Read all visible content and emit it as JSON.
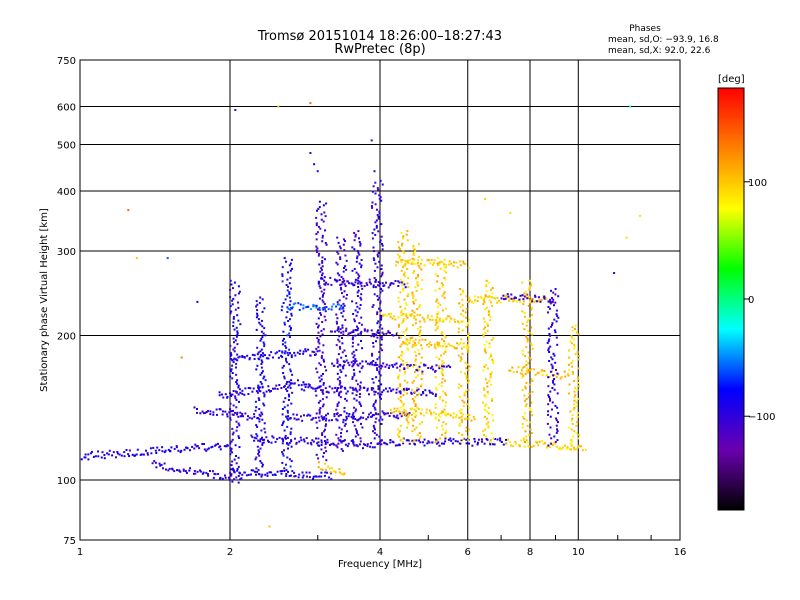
{
  "chart_data": {
    "type": "scatter",
    "title": "Tromsø 20151014 18:26:00–18:27:43",
    "subtitle": "RwPretec (8p)",
    "xlabel": "Frequency [MHz]",
    "ylabel": "Stationary phase Virtual Height [km]",
    "xscale": "log",
    "yscale": "log",
    "xlim": [
      1,
      16
    ],
    "ylim": [
      75,
      750
    ],
    "xticks": [
      1,
      2,
      4,
      6,
      8,
      10,
      16
    ],
    "yticks": [
      75,
      100,
      200,
      300,
      400,
      500,
      600,
      750
    ],
    "grid": true,
    "annotation": {
      "title": "Phases",
      "line_o": "mean, sd,O: −93.9, 16.8",
      "line_x": "mean, sd,X:  92.0, 22.6"
    },
    "colorbar": {
      "label": "[deg]",
      "range": [
        -180,
        180
      ],
      "ticks": [
        100,
        0,
        -100
      ],
      "tick_labels": [
        "100",
        "0",
        "−100"
      ],
      "colormap": [
        "#000000",
        "#6a00b0",
        "#0000ff",
        "#00ffff",
        "#00ff00",
        "#ffff00",
        "#ff8000",
        "#ff0000"
      ]
    },
    "traces": [
      {
        "f_start": 1.0,
        "f_end": 2.0,
        "h_start": 112,
        "h_end": 118,
        "phase": -95
      },
      {
        "f_start": 1.4,
        "f_end": 2.1,
        "h_start": 108,
        "h_end": 100,
        "phase": -100
      },
      {
        "f_start": 2.0,
        "f_end": 3.2,
        "h_start": 104,
        "h_end": 102,
        "phase": -95
      },
      {
        "f_start": 3.0,
        "f_end": 3.4,
        "h_start": 107,
        "h_end": 104,
        "phase": 100
      },
      {
        "f_start": 2.2,
        "f_end": 4.0,
        "h_start": 122,
        "h_end": 118,
        "phase": -100
      },
      {
        "f_start": 4.0,
        "f_end": 7.2,
        "h_start": 120,
        "h_end": 120,
        "phase": -95
      },
      {
        "f_start": 7.2,
        "f_end": 10.3,
        "h_start": 120,
        "h_end": 117,
        "phase": 95
      },
      {
        "f_start": 2.6,
        "f_end": 4.6,
        "h_start": 135,
        "h_end": 136,
        "phase": -100
      },
      {
        "f_start": 2.8,
        "f_end": 5.2,
        "h_start": 155,
        "h_end": 152,
        "phase": -95
      },
      {
        "f_start": 4.2,
        "f_end": 6.2,
        "h_start": 140,
        "h_end": 135,
        "phase": 95
      },
      {
        "f_start": 3.2,
        "f_end": 5.5,
        "h_start": 175,
        "h_end": 170,
        "phase": -100
      },
      {
        "f_start": 3.2,
        "f_end": 4.4,
        "h_start": 205,
        "h_end": 200,
        "phase": -110
      },
      {
        "f_start": 4.4,
        "f_end": 6.0,
        "h_start": 195,
        "h_end": 190,
        "phase": 100
      },
      {
        "f_start": 4.0,
        "f_end": 5.8,
        "h_start": 220,
        "h_end": 215,
        "phase": 95
      },
      {
        "f_start": 6.0,
        "f_end": 8.8,
        "h_start": 238,
        "h_end": 238,
        "phase": 95
      },
      {
        "f_start": 7.0,
        "f_end": 9.0,
        "h_start": 240,
        "h_end": 238,
        "phase": -105
      },
      {
        "f_start": 3.0,
        "f_end": 4.5,
        "h_start": 260,
        "h_end": 255,
        "phase": -100
      },
      {
        "f_start": 4.3,
        "f_end": 6.0,
        "h_start": 285,
        "h_end": 280,
        "phase": 100
      },
      {
        "f_start": 1.9,
        "f_end": 2.9,
        "h_start": 150,
        "h_end": 160,
        "phase": -95
      },
      {
        "f_start": 2.0,
        "f_end": 3.0,
        "h_start": 180,
        "h_end": 185,
        "phase": -95
      },
      {
        "f_start": 1.7,
        "f_end": 2.3,
        "h_start": 140,
        "h_end": 135,
        "phase": -100
      },
      {
        "f_start": 7.3,
        "f_end": 9.5,
        "h_start": 170,
        "h_end": 165,
        "phase": 100
      },
      {
        "f_start": 2.6,
        "f_end": 3.4,
        "h_start": 230,
        "h_end": 230,
        "phase": -60
      }
    ],
    "columns": [
      {
        "f": 2.05,
        "h_min": 102,
        "h_max": 260,
        "phase": -95
      },
      {
        "f": 2.3,
        "h_min": 104,
        "h_max": 240,
        "phase": -90
      },
      {
        "f": 2.6,
        "h_min": 104,
        "h_max": 290,
        "phase": -85
      },
      {
        "f": 3.05,
        "h_min": 110,
        "h_max": 380,
        "phase": -105
      },
      {
        "f": 3.35,
        "h_min": 115,
        "h_max": 320,
        "phase": -105
      },
      {
        "f": 3.6,
        "h_min": 118,
        "h_max": 330,
        "phase": -100
      },
      {
        "f": 3.95,
        "h_min": 120,
        "h_max": 420,
        "phase": -100
      },
      {
        "f": 4.45,
        "h_min": 120,
        "h_max": 330,
        "phase": 95
      },
      {
        "f": 4.75,
        "h_min": 120,
        "h_max": 310,
        "phase": 100
      },
      {
        "f": 5.3,
        "h_min": 120,
        "h_max": 290,
        "phase": 95
      },
      {
        "f": 5.9,
        "h_min": 120,
        "h_max": 250,
        "phase": 100
      },
      {
        "f": 6.6,
        "h_min": 120,
        "h_max": 260,
        "phase": 95
      },
      {
        "f": 7.9,
        "h_min": 120,
        "h_max": 260,
        "phase": 100
      },
      {
        "f": 8.9,
        "h_min": 118,
        "h_max": 250,
        "phase": -100
      },
      {
        "f": 9.8,
        "h_min": 118,
        "h_max": 210,
        "phase": 95
      }
    ],
    "stray_points": [
      {
        "f": 2.05,
        "h": 590,
        "phase": -110
      },
      {
        "f": 2.9,
        "h": 610,
        "phase": 140
      },
      {
        "f": 2.5,
        "h": 600,
        "phase": 100
      },
      {
        "f": 3.85,
        "h": 510,
        "phase": -110
      },
      {
        "f": 2.9,
        "h": 480,
        "phase": -100
      },
      {
        "f": 2.95,
        "h": 455,
        "phase": -95
      },
      {
        "f": 3.0,
        "h": 440,
        "phase": -100
      },
      {
        "f": 3.9,
        "h": 440,
        "phase": -105
      },
      {
        "f": 6.5,
        "h": 385,
        "phase": 95
      },
      {
        "f": 7.3,
        "h": 360,
        "phase": 90
      },
      {
        "f": 1.25,
        "h": 365,
        "phase": 140
      },
      {
        "f": 12.7,
        "h": 600,
        "phase": -20
      },
      {
        "f": 13.3,
        "h": 355,
        "phase": 90
      },
      {
        "f": 11.8,
        "h": 270,
        "phase": -100
      },
      {
        "f": 12.5,
        "h": 320,
        "phase": 90
      },
      {
        "f": 2.4,
        "h": 80,
        "phase": 100
      },
      {
        "f": 1.6,
        "h": 180,
        "phase": 130
      },
      {
        "f": 1.3,
        "h": 290,
        "phase": 100
      },
      {
        "f": 1.5,
        "h": 290,
        "phase": -60
      },
      {
        "f": 1.72,
        "h": 235,
        "phase": -90
      }
    ]
  }
}
